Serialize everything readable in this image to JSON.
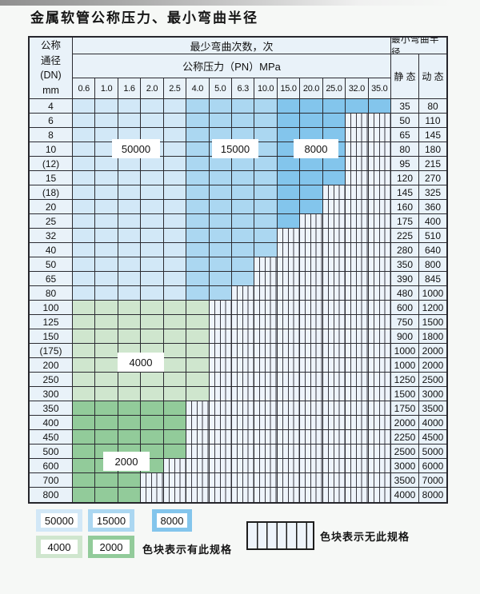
{
  "title": "金属软管公称压力、最小弯曲半径",
  "colors": {
    "cycles50000": "#d2e8f7",
    "cycles15000": "#abd7f1",
    "cycles8000": "#83c5ec",
    "cycles4000": "#cfe6ce",
    "cycles2000": "#92cb9a",
    "cellBg": "#e9f2f9",
    "hatchBg": "#eef4fb",
    "hatchLine": "#3c3c44",
    "gridLine": "#2b2b31"
  },
  "table": {
    "header": {
      "dn_lines": [
        "公称",
        "通径",
        "(DN)",
        "mm"
      ],
      "cycles_title": "最少弯曲次数，次",
      "pressure_title": "公称压力（PN）MPa",
      "radius_title": "最小弯曲半径",
      "static_label": "静 态",
      "dynamic_label": "动 态",
      "pressure_cols": [
        "0.6",
        "1.0",
        "1.6",
        "2.0",
        "2.5",
        "4.0",
        "5.0",
        "6.3",
        "10.0",
        "15.0",
        "20.0",
        "25.0",
        "32.0",
        "35.0"
      ]
    },
    "cycle_zones": [
      {
        "cycles": "50000",
        "columns": [
          "0.6",
          "1.0",
          "1.6",
          "2.0",
          "2.5"
        ]
      },
      {
        "cycles": "15000",
        "columns": [
          "4.0",
          "5.0",
          "6.3",
          "10.0"
        ]
      },
      {
        "cycles": "8000",
        "columns": [
          "15.0",
          "20.0",
          "25.0",
          "32.0",
          "35.0"
        ]
      }
    ],
    "rows": [
      {
        "dn": "4",
        "zone": "blue",
        "colored_cols": 14,
        "static": "35",
        "dynamic": "80"
      },
      {
        "dn": "6",
        "zone": "blue",
        "colored_cols": 12,
        "static": "50",
        "dynamic": "110"
      },
      {
        "dn": "8",
        "zone": "blue",
        "colored_cols": 12,
        "static": "65",
        "dynamic": "145"
      },
      {
        "dn": "10",
        "zone": "blue",
        "colored_cols": 12,
        "static": "80",
        "dynamic": "180"
      },
      {
        "dn": "(12)",
        "zone": "blue",
        "colored_cols": 12,
        "static": "95",
        "dynamic": "215"
      },
      {
        "dn": "15",
        "zone": "blue",
        "colored_cols": 12,
        "static": "120",
        "dynamic": "270"
      },
      {
        "dn": "(18)",
        "zone": "blue",
        "colored_cols": 11,
        "static": "145",
        "dynamic": "325"
      },
      {
        "dn": "20",
        "zone": "blue",
        "colored_cols": 11,
        "static": "160",
        "dynamic": "360"
      },
      {
        "dn": "25",
        "zone": "blue",
        "colored_cols": 10,
        "static": "175",
        "dynamic": "400"
      },
      {
        "dn": "32",
        "zone": "blue",
        "colored_cols": 9,
        "static": "225",
        "dynamic": "510"
      },
      {
        "dn": "40",
        "zone": "blue",
        "colored_cols": 9,
        "static": "280",
        "dynamic": "640"
      },
      {
        "dn": "50",
        "zone": "blue",
        "colored_cols": 8,
        "static": "350",
        "dynamic": "800"
      },
      {
        "dn": "65",
        "zone": "blue",
        "colored_cols": 8,
        "static": "390",
        "dynamic": "845"
      },
      {
        "dn": "80",
        "zone": "blue",
        "colored_cols": 7,
        "static": "480",
        "dynamic": "1000"
      },
      {
        "dn": "100",
        "zone": "4000",
        "colored_cols": 6,
        "static": "600",
        "dynamic": "1200"
      },
      {
        "dn": "125",
        "zone": "4000",
        "colored_cols": 6,
        "static": "750",
        "dynamic": "1500"
      },
      {
        "dn": "150",
        "zone": "4000",
        "colored_cols": 6,
        "static": "900",
        "dynamic": "1800"
      },
      {
        "dn": "(175)",
        "zone": "4000",
        "colored_cols": 6,
        "static": "1000",
        "dynamic": "2000"
      },
      {
        "dn": "200",
        "zone": "4000",
        "colored_cols": 6,
        "static": "1000",
        "dynamic": "2000"
      },
      {
        "dn": "250",
        "zone": "4000",
        "colored_cols": 6,
        "static": "1250",
        "dynamic": "2500"
      },
      {
        "dn": "300",
        "zone": "4000",
        "colored_cols": 6,
        "static": "1500",
        "dynamic": "3000"
      },
      {
        "dn": "350",
        "zone": "2000",
        "colored_cols": 5,
        "static": "1750",
        "dynamic": "3500"
      },
      {
        "dn": "400",
        "zone": "2000",
        "colored_cols": 5,
        "static": "2000",
        "dynamic": "4000"
      },
      {
        "dn": "450",
        "zone": "2000",
        "colored_cols": 5,
        "static": "2250",
        "dynamic": "4500"
      },
      {
        "dn": "500",
        "zone": "2000",
        "colored_cols": 5,
        "static": "2500",
        "dynamic": "5000"
      },
      {
        "dn": "600",
        "zone": "2000",
        "colored_cols": 4,
        "static": "3000",
        "dynamic": "6000"
      },
      {
        "dn": "700",
        "zone": "2000",
        "colored_cols": 3,
        "static": "3500",
        "dynamic": "7000"
      },
      {
        "dn": "800",
        "zone": "2000",
        "colored_cols": 3,
        "static": "4000",
        "dynamic": "8000"
      }
    ]
  },
  "overlay_labels": [
    {
      "text": "50000"
    },
    {
      "text": "15000"
    },
    {
      "text": "8000"
    },
    {
      "text": "4000"
    },
    {
      "text": "2000"
    }
  ],
  "legend": {
    "swatches": [
      {
        "value": "50000"
      },
      {
        "value": "15000"
      },
      {
        "value": "8000"
      },
      {
        "value": "4000"
      },
      {
        "value": "2000"
      }
    ],
    "has_spec_text": "色块表示有此规格",
    "no_spec_text": "色块表示无此规格"
  }
}
